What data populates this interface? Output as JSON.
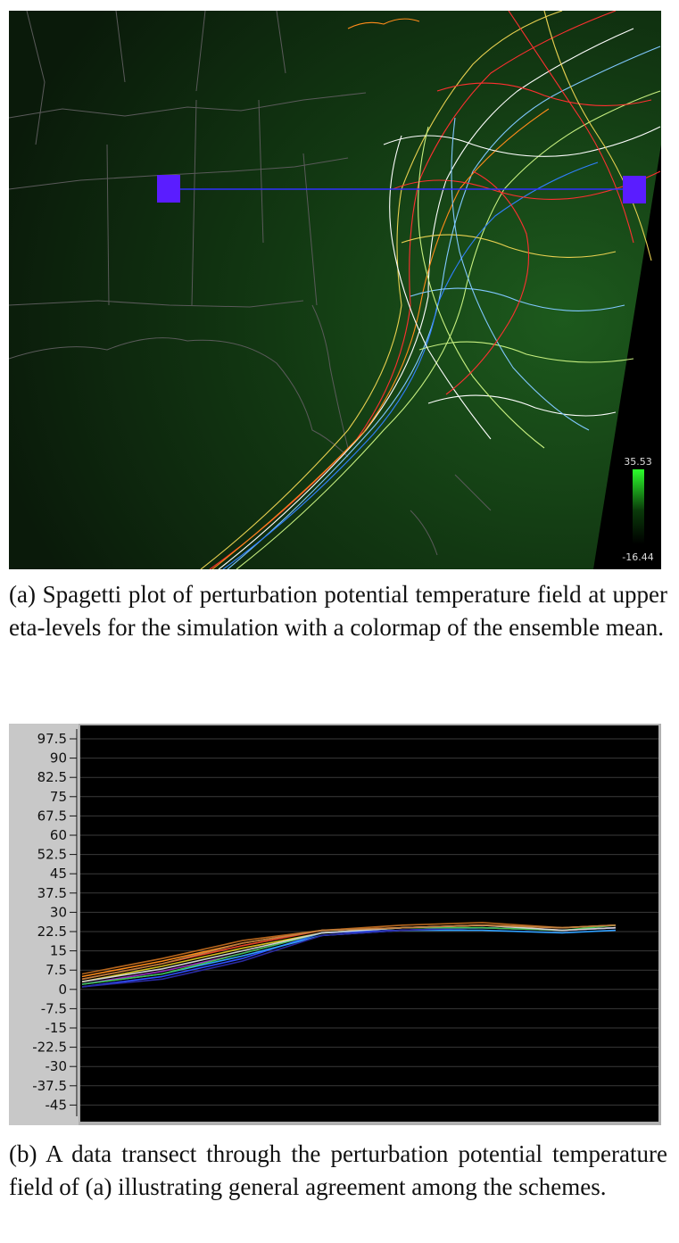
{
  "figure_a": {
    "colorbar": {
      "max_label": "35.53",
      "min_label": "-16.44"
    },
    "caption": "(a) Spagetti plot of perturbation potential temperature field at upper eta-levels for the simulation with a colormap of the ensemble mean."
  },
  "figure_b": {
    "caption": "(b) A data transect through the perturbation potential temperature field of (a) illustrating general agreement among the schemes."
  },
  "chart_data": {
    "type": "line",
    "title": "",
    "xlabel": "",
    "ylabel": "",
    "ylim": [
      -50,
      100
    ],
    "grid": true,
    "y_ticks": [
      "97.5",
      "90",
      "82.5",
      "75",
      "67.5",
      "60",
      "52.5",
      "45",
      "37.5",
      "30",
      "22.5",
      "15",
      "7.5",
      "0",
      "-7.5",
      "-15",
      "-22.5",
      "-30",
      "-37.5",
      "-45"
    ],
    "y_tick_values": [
      97.5,
      90,
      82.5,
      75,
      67.5,
      60,
      52.5,
      45,
      37.5,
      30,
      22.5,
      15,
      7.5,
      0,
      -7.5,
      -15,
      -22.5,
      -30,
      -37.5,
      -45
    ],
    "x": [
      0,
      0.15,
      0.3,
      0.45,
      0.6,
      0.75,
      0.9,
      1.0
    ],
    "series": [
      {
        "color": "#ff8c1a",
        "values": [
          5,
          11,
          18,
          23,
          24,
          25,
          24,
          25
        ]
      },
      {
        "color": "#e8462a",
        "values": [
          4,
          10,
          17,
          23,
          24,
          25,
          23,
          24
        ]
      },
      {
        "color": "#b5651d",
        "values": [
          6,
          12,
          19,
          23,
          25,
          26,
          24,
          25
        ]
      },
      {
        "color": "#d4c020",
        "values": [
          3,
          9,
          16,
          22,
          24,
          24,
          23,
          24
        ]
      },
      {
        "color": "#9a30c0",
        "values": [
          2,
          7,
          14,
          22,
          23,
          24,
          23,
          24
        ]
      },
      {
        "color": "#3050ff",
        "values": [
          1,
          5,
          12,
          22,
          23,
          24,
          23,
          24
        ]
      },
      {
        "color": "#30a0ff",
        "values": [
          2,
          6,
          13,
          21,
          23,
          23,
          22,
          23
        ]
      },
      {
        "color": "#2a2aa0",
        "values": [
          1,
          4,
          11,
          21,
          23,
          24,
          23,
          24
        ]
      },
      {
        "color": "#40c050",
        "values": [
          2,
          6,
          14,
          22,
          24,
          24,
          23,
          25
        ]
      },
      {
        "color": "#d0d0d0",
        "values": [
          3,
          8,
          15,
          22,
          24,
          25,
          23,
          24
        ]
      },
      {
        "color": "#c08040",
        "values": [
          4,
          10,
          18,
          23,
          24,
          25,
          24,
          25
        ]
      }
    ]
  }
}
